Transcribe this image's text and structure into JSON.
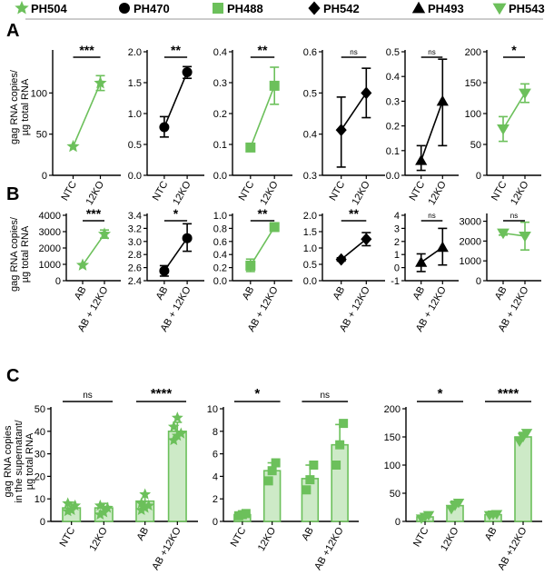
{
  "colors": {
    "green": "#6cc05b",
    "green_fill": "#cdeac7",
    "black": "#000000"
  },
  "legend": [
    {
      "name": "PH504",
      "marker": "star",
      "color": "#6cc05b"
    },
    {
      "name": "PH470",
      "marker": "circle",
      "color": "#000000"
    },
    {
      "name": "PH488",
      "marker": "square",
      "color": "#6cc05b"
    },
    {
      "name": "PH542",
      "marker": "diamond",
      "color": "#000000"
    },
    {
      "name": "PH493",
      "marker": "triangle-up",
      "color": "#000000"
    },
    {
      "name": "PH543",
      "marker": "triangle-down",
      "color": "#6cc05b"
    }
  ],
  "panels": {
    "A": {
      "label": "A",
      "ylabel_line1": "gag RNA copies/",
      "ylabel_line2": "µg total RNA"
    },
    "B": {
      "label": "B",
      "ylabel_line1": "gag RNA copies/",
      "ylabel_line2": "µg total RNA"
    },
    "C": {
      "label": "C",
      "ylabel_line1": "gag RNA copies",
      "ylabel_line2": "in the supernatant/",
      "ylabel_line3": "µg total RNA"
    }
  },
  "chart_data": [
    {
      "id": "A1",
      "type": "line",
      "marker": "star",
      "color": "#6cc05b",
      "categories": [
        "NTC",
        "12KO"
      ],
      "values": [
        35,
        112
      ],
      "err_low": [
        35,
        103
      ],
      "err_high": [
        35,
        121
      ],
      "ylim": [
        0,
        150
      ],
      "yticks": [
        "0",
        "50",
        "100"
      ],
      "ytick_values": [
        0,
        50,
        100
      ],
      "sig": "***"
    },
    {
      "id": "A2",
      "type": "line",
      "marker": "circle",
      "color": "#000000",
      "categories": [
        "NTC",
        "12KO"
      ],
      "values": [
        0.78,
        1.67
      ],
      "err_low": [
        0.62,
        1.57
      ],
      "err_high": [
        0.95,
        1.76
      ],
      "ylim": [
        0,
        2.0
      ],
      "yticks": [
        "0.0",
        "0.5",
        "1.0",
        "1.5",
        "2.0"
      ],
      "ytick_values": [
        0,
        0.5,
        1.0,
        1.5,
        2.0
      ],
      "sig": "**"
    },
    {
      "id": "A3",
      "type": "line",
      "marker": "square",
      "color": "#6cc05b",
      "categories": [
        "NTC",
        "12KO"
      ],
      "values": [
        0.09,
        0.29
      ],
      "err_low": [
        0.08,
        0.23
      ],
      "err_high": [
        0.1,
        0.35
      ],
      "ylim": [
        0,
        0.4
      ],
      "yticks": [
        "0.0",
        "0.1",
        "0.2",
        "0.3",
        "0.4"
      ],
      "ytick_values": [
        0,
        0.1,
        0.2,
        0.3,
        0.4
      ],
      "sig": "**"
    },
    {
      "id": "A4",
      "type": "line",
      "marker": "diamond",
      "color": "#000000",
      "categories": [
        "NTC",
        "12KO"
      ],
      "values": [
        0.41,
        0.5
      ],
      "err_low": [
        0.32,
        0.44
      ],
      "err_high": [
        0.49,
        0.56
      ],
      "ylim": [
        0.3,
        0.6
      ],
      "yticks": [
        "0.3",
        "0.4",
        "0.5",
        "0.6"
      ],
      "ytick_values": [
        0.3,
        0.4,
        0.5,
        0.6
      ],
      "sig": "ns"
    },
    {
      "id": "A5",
      "type": "line",
      "marker": "triangle-up",
      "color": "#000000",
      "categories": [
        "NTC",
        "12KO"
      ],
      "values": [
        0.06,
        0.3
      ],
      "err_low": [
        0.02,
        0.12
      ],
      "err_high": [
        0.12,
        0.47
      ],
      "ylim": [
        0,
        0.5
      ],
      "yticks": [
        "0.0",
        "0.1",
        "0.2",
        "0.3",
        "0.4",
        "0.5"
      ],
      "ytick_values": [
        0,
        0.1,
        0.2,
        0.3,
        0.4,
        0.5
      ],
      "sig": "ns"
    },
    {
      "id": "A6",
      "type": "line",
      "marker": "triangle-down",
      "color": "#6cc05b",
      "categories": [
        "NTC",
        "12KO"
      ],
      "values": [
        75,
        133
      ],
      "err_low": [
        55,
        118
      ],
      "err_high": [
        95,
        148
      ],
      "ylim": [
        0,
        200
      ],
      "yticks": [
        "0",
        "50",
        "100",
        "150",
        "200"
      ],
      "ytick_values": [
        0,
        50,
        100,
        150,
        200
      ],
      "sig": "*"
    },
    {
      "id": "B1",
      "type": "line",
      "marker": "star",
      "color": "#6cc05b",
      "categories": [
        "AB",
        "AB + 12KO"
      ],
      "values": [
        950,
        2850
      ],
      "err_low": [
        950,
        2600
      ],
      "err_high": [
        950,
        3100
      ],
      "ylim": [
        0,
        4000
      ],
      "yticks": [
        "0",
        "1000",
        "2000",
        "3000",
        "4000"
      ],
      "ytick_values": [
        0,
        1000,
        2000,
        3000,
        4000
      ],
      "sig": "***"
    },
    {
      "id": "B2",
      "type": "line",
      "marker": "circle",
      "color": "#000000",
      "categories": [
        "AB",
        "AB + 12KO"
      ],
      "values": [
        2.55,
        3.05
      ],
      "err_low": [
        2.47,
        2.85
      ],
      "err_high": [
        2.63,
        3.27
      ],
      "ylim": [
        2.4,
        3.4
      ],
      "yticks": [
        "2.4",
        "2.6",
        "2.8",
        "3.0",
        "3.2",
        "3.4"
      ],
      "ytick_values": [
        2.4,
        2.6,
        2.8,
        3.0,
        3.2,
        3.4
      ],
      "sig": "*"
    },
    {
      "id": "B3",
      "type": "line",
      "marker": "square",
      "color": "#6cc05b",
      "categories": [
        "AB",
        "AB + 12KO"
      ],
      "values": [
        0.23,
        0.82
      ],
      "err_low": [
        0.14,
        0.76
      ],
      "err_high": [
        0.33,
        0.88
      ],
      "ylim": [
        0,
        1.0
      ],
      "yticks": [
        "0.0",
        "0.2",
        "0.4",
        "0.6",
        "0.8",
        "1.0"
      ],
      "ytick_values": [
        0,
        0.2,
        0.4,
        0.6,
        0.8,
        1.0
      ],
      "sig": "**"
    },
    {
      "id": "B4",
      "type": "line",
      "marker": "diamond",
      "color": "#000000",
      "categories": [
        "AB",
        "AB + 12KO"
      ],
      "values": [
        0.65,
        1.27
      ],
      "err_low": [
        0.6,
        1.07
      ],
      "err_high": [
        0.7,
        1.47
      ],
      "ylim": [
        0,
        2.0
      ],
      "yticks": [
        "0.0",
        "0.5",
        "1.0",
        "1.5",
        "2.0"
      ],
      "ytick_values": [
        0,
        0.5,
        1.0,
        1.5,
        2.0
      ],
      "sig": "**"
    },
    {
      "id": "B5",
      "type": "line",
      "marker": "triangle-up",
      "color": "#000000",
      "categories": [
        "AB",
        "AB + 12KO"
      ],
      "values": [
        0.4,
        1.55
      ],
      "err_low": [
        -0.3,
        0.2
      ],
      "err_high": [
        1.05,
        3.0
      ],
      "ylim": [
        -1,
        4
      ],
      "yticks": [
        "-1",
        "0",
        "1",
        "2",
        "3",
        "4"
      ],
      "ytick_values": [
        -1,
        0,
        1,
        2,
        3,
        4
      ],
      "sig": "ns"
    },
    {
      "id": "B6",
      "type": "line",
      "marker": "triangle-down",
      "color": "#6cc05b",
      "categories": [
        "AB",
        "AB + 12KO"
      ],
      "values": [
        2400,
        2250
      ],
      "err_low": [
        2300,
        1550
      ],
      "err_high": [
        2500,
        2950
      ],
      "ylim": [
        0,
        3300
      ],
      "yticks": [
        "0",
        "1000",
        "2000",
        "3000"
      ],
      "ytick_values": [
        0,
        1000,
        2000,
        3000
      ],
      "sig": "ns"
    },
    {
      "id": "C1",
      "type": "bar",
      "marker": "star",
      "color": "#6cc05b",
      "categories": [
        "NTC",
        "12KO",
        "AB",
        "AB +12KO"
      ],
      "values": [
        6,
        6,
        9,
        40
      ],
      "err": [
        2.5,
        2,
        3.5,
        4
      ],
      "points": [
        [
          4.5,
          5,
          7,
          8
        ],
        [
          3,
          4,
          6,
          7
        ],
        [
          5,
          6,
          7,
          8,
          12
        ],
        [
          36,
          38,
          39,
          42,
          46
        ]
      ],
      "ylim": [
        0,
        50
      ],
      "yticks": [
        "0",
        "10",
        "20",
        "30",
        "40",
        "50"
      ],
      "ytick_values": [
        0,
        10,
        20,
        30,
        40,
        50
      ],
      "sig": [
        {
          "pair": [
            0,
            1
          ],
          "label": "ns"
        },
        {
          "pair": [
            2,
            3
          ],
          "label": "****"
        }
      ]
    },
    {
      "id": "C2",
      "type": "bar",
      "marker": "square",
      "color": "#6cc05b",
      "categories": [
        "NTC",
        "12KO",
        "AB",
        "AB +12KO"
      ],
      "values": [
        0.6,
        4.5,
        3.8,
        6.8
      ],
      "err": [
        0.1,
        0.7,
        1.2,
        1.8
      ],
      "points": [
        [
          0.5,
          0.6,
          0.7
        ],
        [
          3.6,
          4.5,
          5.2
        ],
        [
          2.8,
          3.7,
          5.0
        ],
        [
          5.0,
          6.8,
          8.7
        ]
      ],
      "ylim": [
        0,
        10
      ],
      "yticks": [
        "0",
        "2",
        "4",
        "6",
        "8",
        "10"
      ],
      "ytick_values": [
        0,
        2,
        4,
        6,
        8,
        10
      ],
      "sig": [
        {
          "pair": [
            0,
            1
          ],
          "label": "*"
        },
        {
          "pair": [
            2,
            3
          ],
          "label": "ns"
        }
      ]
    },
    {
      "id": "C3",
      "type": "bar",
      "marker": "triangle-down",
      "color": "#6cc05b",
      "categories": [
        "NTC",
        "12KO",
        "AB",
        "AB +12KO"
      ],
      "values": [
        8,
        28,
        12,
        150
      ],
      "err": [
        6,
        8,
        2,
        8
      ],
      "points": [
        [
          5,
          8,
          11
        ],
        [
          22,
          28,
          33
        ],
        [
          11,
          12,
          13
        ],
        [
          142,
          150,
          157
        ]
      ],
      "ylim": [
        0,
        200
      ],
      "yticks": [
        "0",
        "50",
        "100",
        "150",
        "200"
      ],
      "ytick_values": [
        0,
        50,
        100,
        150,
        200
      ],
      "sig": [
        {
          "pair": [
            0,
            1
          ],
          "label": "*"
        },
        {
          "pair": [
            2,
            3
          ],
          "label": "****"
        }
      ]
    }
  ]
}
